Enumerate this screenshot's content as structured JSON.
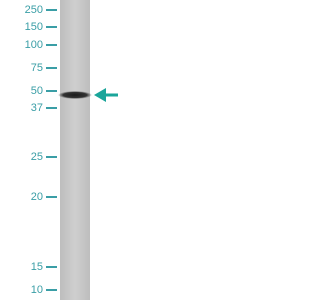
{
  "markers": [
    "250",
    "150",
    "100",
    "75",
    "50",
    "37",
    "25",
    "20",
    "15",
    "10"
  ]
}
